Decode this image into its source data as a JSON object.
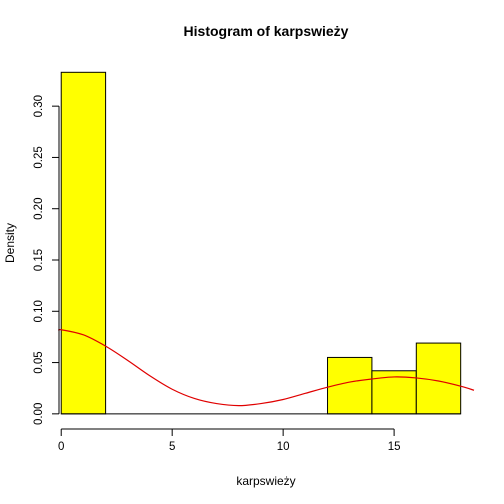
{
  "chart_data": {
    "type": "bar",
    "title": "Histogram of karpswieży",
    "xlabel": "karpswieży",
    "ylabel": "Density",
    "xlim": [
      -0.1,
      18.6
    ],
    "ylim": [
      -0.006,
      0.345
    ],
    "x_ticks": [
      0,
      5,
      10,
      15
    ],
    "y_ticks": [
      0.0,
      0.05,
      0.1,
      0.15,
      0.2,
      0.25,
      0.3
    ],
    "y_tick_labels": [
      "0.00",
      "0.05",
      "0.10",
      "0.15",
      "0.20",
      "0.25",
      "0.30"
    ],
    "bins": [
      {
        "x0": 0,
        "x1": 2,
        "density": 0.333
      },
      {
        "x0": 12,
        "x1": 14,
        "density": 0.055
      },
      {
        "x0": 14,
        "x1": 16,
        "density": 0.042
      },
      {
        "x0": 16,
        "x1": 18,
        "density": 0.069
      }
    ],
    "density_curve": {
      "x": [
        -0.1,
        0,
        1,
        2,
        3,
        4,
        5,
        6,
        7,
        8,
        9,
        10,
        11,
        12,
        13,
        14,
        15,
        16,
        17,
        18,
        18.6
      ],
      "y": [
        0.081,
        0.082,
        0.077,
        0.066,
        0.052,
        0.037,
        0.024,
        0.015,
        0.01,
        0.008,
        0.01,
        0.014,
        0.02,
        0.026,
        0.031,
        0.034,
        0.036,
        0.035,
        0.032,
        0.027,
        0.023
      ]
    },
    "grid": false,
    "colors": {
      "bar_fill": "#ffff00",
      "bar_stroke": "#000000",
      "density_line": "#e00000"
    }
  }
}
